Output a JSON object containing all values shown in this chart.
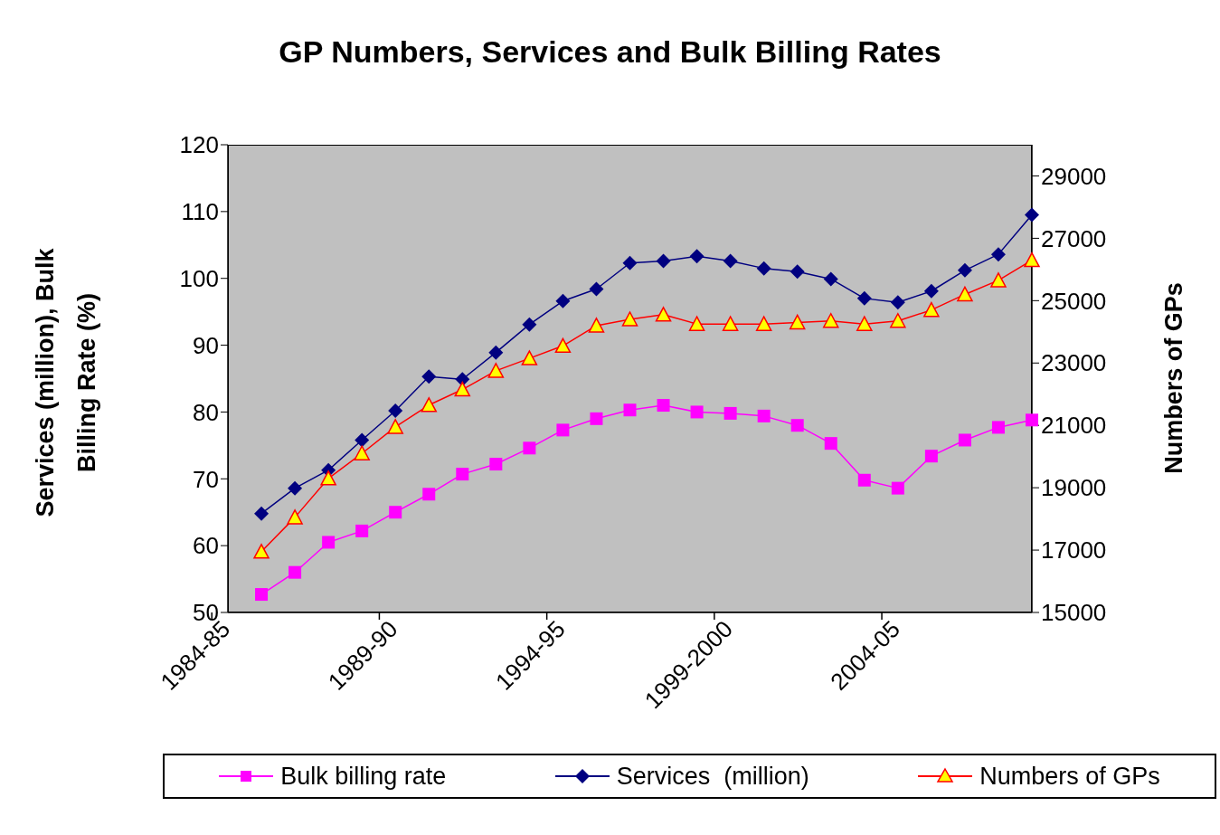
{
  "chart_data": {
    "type": "line",
    "title": "GP Numbers, Services and Bulk Billing Rates",
    "ylabel": "Services (million), Bulk Billing Rate (%)",
    "y2label": "Numbers of GPs",
    "categories": [
      "1984-85",
      null,
      null,
      null,
      null,
      "1989-90",
      null,
      null,
      null,
      null,
      "1994-95",
      null,
      null,
      null,
      null,
      "1999-2000",
      null,
      null,
      null,
      null,
      "2004-05",
      null,
      null,
      null,
      null
    ],
    "series": [
      {
        "name": "Bulk billing rate",
        "color": "#ff00ff",
        "marker": "square",
        "values": [
          null,
          52.7,
          56.0,
          60.5,
          62.2,
          65.0,
          67.7,
          70.7,
          72.2,
          74.6,
          77.3,
          79.0,
          80.3,
          81.0,
          80.0,
          79.8,
          79.4,
          78.0,
          75.3,
          69.8,
          68.6,
          73.4,
          75.8,
          77.7,
          78.8
        ]
      },
      {
        "name": "Services  (million)",
        "color": "#000080",
        "marker": "diamond",
        "values": [
          null,
          64.8,
          68.6,
          71.3,
          75.8,
          80.2,
          85.3,
          84.9,
          88.9,
          93.1,
          96.6,
          98.4,
          102.3,
          102.6,
          103.3,
          102.6,
          101.5,
          101.0,
          99.9,
          97.0,
          96.4,
          98.1,
          101.2,
          103.6,
          109.5
        ]
      },
      {
        "name": "Numbers of GPs",
        "color": "#ff0000",
        "marker": "triangle",
        "axis": "y2",
        "values": [
          null,
          16950,
          18050,
          19300,
          20100,
          20950,
          21650,
          22150,
          22750,
          23150,
          23550,
          24200,
          24400,
          24550,
          24250,
          24250,
          24250,
          24300,
          24350,
          24250,
          24350,
          24700,
          25200,
          25650,
          26300
        ]
      }
    ],
    "ylim": [
      50,
      120
    ],
    "yticks": [
      50,
      60,
      70,
      80,
      90,
      100,
      110,
      120
    ],
    "y2lim": [
      15000,
      30000
    ],
    "y2ticks": [
      15000,
      17000,
      19000,
      21000,
      23000,
      25000,
      27000,
      29000
    ],
    "legend": "bottom"
  }
}
